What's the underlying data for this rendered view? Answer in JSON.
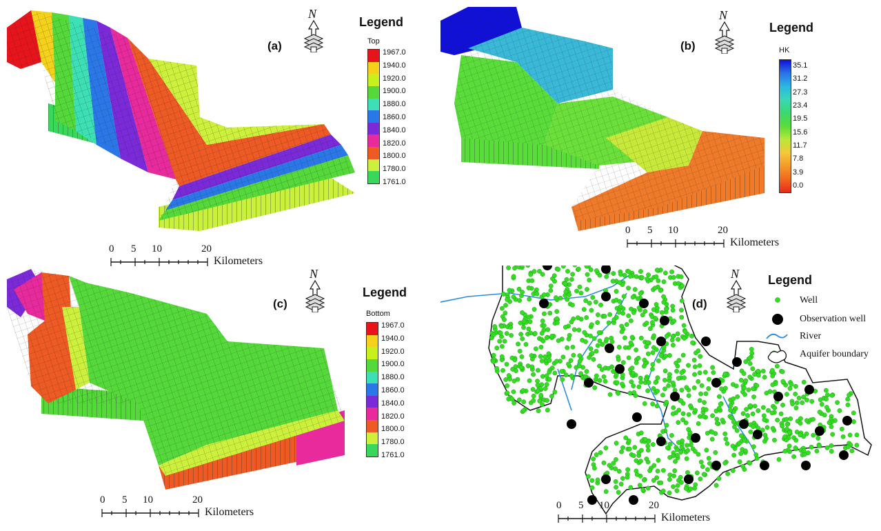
{
  "panels": [
    {
      "label": "(a)",
      "legend_title": "Legend",
      "legend_subtitle": "Top",
      "colors": [
        "#e8141c",
        "#f4d21c",
        "#c8f01c",
        "#55d83a",
        "#3ce0b4",
        "#2a78e8",
        "#7a2ad8",
        "#e82a9c",
        "#ee5a24",
        "#ccf03c",
        "#3ad85a"
      ],
      "ticks": [
        "1967.0",
        "1940.0",
        "1920.0",
        "1900.0",
        "1880.0",
        "1860.0",
        "1840.0",
        "1820.0",
        "1800.0",
        "1780.0",
        "1761.0"
      ],
      "scale": {
        "numbers": [
          "0",
          "5",
          "10",
          "20"
        ],
        "unit": "Kilometers"
      },
      "north": "N"
    },
    {
      "label": "(b)",
      "legend_title": "Legend",
      "legend_subtitle": "HK",
      "colors": [
        "#1010d8",
        "#2a72e8",
        "#2ab8e0",
        "#38d8b8",
        "#3ad870",
        "#5adc3a",
        "#b8e83a",
        "#f4c83a",
        "#f49a2a",
        "#f2681c",
        "#e82a1c"
      ],
      "ticks": [
        "35.1",
        "31.2",
        "27.3",
        "23.4",
        "19.5",
        "15.6",
        "11.7",
        "7.8",
        "3.9",
        "0.0"
      ],
      "scale": {
        "numbers": [
          "0",
          "5",
          "10",
          "20"
        ],
        "unit": "Kilometers"
      },
      "north": "N"
    },
    {
      "label": "(c)",
      "legend_title": "Legend",
      "legend_subtitle": "Bottom",
      "colors": [
        "#e8141c",
        "#f4d21c",
        "#c8f01c",
        "#55d83a",
        "#3ce0b4",
        "#2a78e8",
        "#7a2ad8",
        "#e82a9c",
        "#ee5a24",
        "#ccf03c",
        "#3ad85a"
      ],
      "ticks": [
        "1967.0",
        "1940.0",
        "1920.0",
        "1900.0",
        "1880.0",
        "1860.0",
        "1840.0",
        "1820.0",
        "1800.0",
        "1780.0",
        "1761.0"
      ],
      "scale": {
        "numbers": [
          "0",
          "5",
          "10",
          "20"
        ],
        "unit": "Kilometers"
      },
      "north": "N"
    },
    {
      "label": "(d)",
      "legend_title": "Legend",
      "items": {
        "well": "Well",
        "obs": "Observation well",
        "river": "River",
        "boundary": "Aquifer boundary"
      },
      "scale": {
        "numbers": [
          "0",
          "5",
          "10",
          "20"
        ],
        "unit": "Kilometers"
      },
      "north": "N",
      "well_color": "#33dd22",
      "river_color": "#2a8ee0"
    }
  ]
}
